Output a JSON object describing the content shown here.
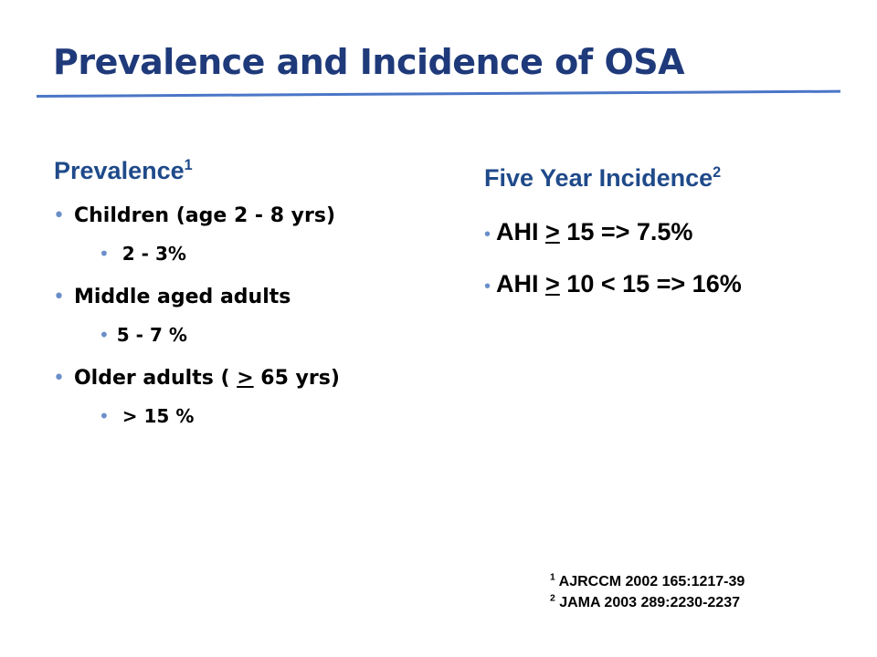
{
  "slide": {
    "title": "Prevalence and Incidence of OSA"
  },
  "left": {
    "heading": "Prevalence",
    "heading_sup": "1",
    "items": [
      {
        "label": "Children (age 2 - 8 yrs)",
        "sub": "2 - 3%"
      },
      {
        "label": "Middle aged adults",
        "sub": "5 - 7 %"
      },
      {
        "label_pre": "Older adults ( ",
        "label_u": ">",
        "label_post": " 65 yrs)",
        "sub": "> 15 %"
      }
    ]
  },
  "right": {
    "heading": "Five Year Incidence",
    "heading_sup": "2",
    "items": [
      {
        "pre": "AHI ",
        "u": ">",
        "post": " 15 => 7.5%"
      },
      {
        "pre": "AHI ",
        "u": ">",
        "post": " 10 < 15 => 16%"
      }
    ]
  },
  "references": [
    {
      "num": "1",
      "text": " AJRCCM 2002 165:1217-39"
    },
    {
      "num": "2",
      "text": " JAMA 2003 289:2230-2237"
    }
  ],
  "bullet_glyph": "•",
  "colors": {
    "title": "#1f3a7a",
    "heading": "#1f4a8a",
    "rule": "#4a76c7",
    "bullet": "#6a8fc9"
  }
}
